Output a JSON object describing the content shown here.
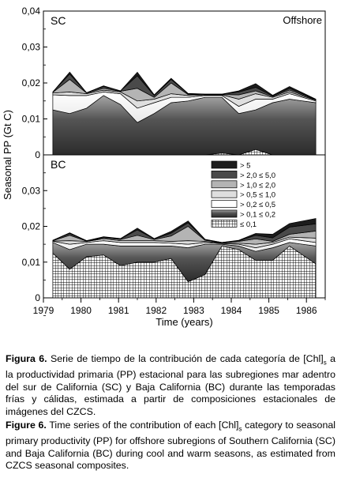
{
  "chart_data": {
    "type": "area",
    "stacked": true,
    "x": [
      1979.25,
      1979.7,
      1980.15,
      1980.6,
      1981.05,
      1981.5,
      1981.95,
      1982.4,
      1982.85,
      1983.3,
      1983.75,
      1984.2,
      1984.65,
      1985.1,
      1985.55,
      1986.25
    ],
    "xticks": [
      "1979",
      "1980",
      "1981",
      "1982",
      "1983",
      "1984",
      "1985",
      "1986"
    ],
    "xlabel": "Time (years)",
    "ylabel": "Seasonal PP (Gt C)",
    "yticks_top": [
      "0,04",
      "0,03",
      "0,02",
      "0,01",
      "0"
    ],
    "yticks_bottom": [
      "0,03",
      "0,02",
      "0,01",
      "0"
    ],
    "ylim": [
      0,
      0.04
    ],
    "legend": {
      "placement": "right, top of BC panel",
      "entries": [
        "> 5",
        "> 2,0 ≤ 5,0",
        "> 1,0 ≤ 2,0",
        "> 0,5 ≤ 1,0",
        "> 0,2 ≤ 0,5",
        "> 0,1 ≤ 0,2",
        "≤ 0,1"
      ]
    },
    "panels": [
      {
        "label": "SC",
        "annotation": "Offshore",
        "series": [
          {
            "name": "≤ 0,1",
            "values": [
              0,
              0,
              0,
              0,
              0,
              0,
              0,
              0,
              0,
              0,
              0.0005,
              0,
              0.0015,
              0,
              0,
              0
            ]
          },
          {
            "name": "> 0,1 ≤ 0,2",
            "values": [
              0.0125,
              0.0115,
              0.013,
              0.0165,
              0.014,
              0.009,
              0.0115,
              0.0145,
              0.015,
              0.016,
              0.0155,
              0.0115,
              0.011,
              0.0145,
              0.0155,
              0.0145
            ]
          },
          {
            "name": "> 0,2 ≤ 0,5",
            "values": [
              0.0042,
              0.005,
              0.0035,
              0.001,
              0.003,
              0.004,
              0.003,
              0.0015,
              0.001,
              0.0005,
              0.0005,
              0.002,
              0.003,
              0.001,
              0.0015,
              0.0005
            ]
          },
          {
            "name": "> 0,5 ≤ 1,0",
            "values": [
              0.0005,
              0.001,
              0.0005,
              0.0005,
              0.0005,
              0.002,
              0.001,
              0.001,
              0.0005,
              0.0002,
              0.0002,
              0.002,
              0.0015,
              0.0005,
              0.0005,
              0.0002
            ]
          },
          {
            "name": "> 1,0 ≤ 2,0",
            "values": [
              0.0002,
              0.0035,
              0.0002,
              0.0005,
              0.0002,
              0.0035,
              0.0005,
              0.003,
              0.0003,
              0.0001,
              0.0001,
              0.0012,
              0.0008,
              0.0002,
              0.0005,
              0.0001
            ]
          },
          {
            "name": "> 2,0 ≤ 5,0",
            "values": [
              0.0001,
              0.0015,
              0.0001,
              0.0005,
              0.0001,
              0.0035,
              0.0005,
              0.001,
              0.0002,
              0.0001,
              0.0001,
              0.0008,
              0.001,
              0.0002,
              0.0005,
              0.0001
            ]
          },
          {
            "name": "> 5",
            "values": [
              0,
              0.0005,
              0,
              0.0002,
              0,
              0.001,
              0.0002,
              0.0003,
              0.0001,
              0,
              0,
              0.0003,
              0.001,
              0.0002,
              0.0005,
              0.0001
            ]
          }
        ]
      },
      {
        "label": "BC",
        "series": [
          {
            "name": "≤ 0,1",
            "values": [
              0.0125,
              0.008,
              0.0115,
              0.012,
              0.009,
              0.01,
              0.01,
              0.011,
              0.0045,
              0.0065,
              0.0145,
              0.0135,
              0.0105,
              0.0105,
              0.0145,
              0.0095
            ]
          },
          {
            "name": "> 0,1 ≤ 0,2",
            "values": [
              0.003,
              0.0055,
              0.0035,
              0.003,
              0.0055,
              0.0045,
              0.0045,
              0.0035,
              0.0095,
              0.0085,
              0.0005,
              0.001,
              0.0025,
              0.0035,
              0.001,
              0.005
            ]
          },
          {
            "name": "> 0,2 ≤ 0,5",
            "values": [
              0.0003,
              0.0015,
              0.0005,
              0.001,
              0.001,
              0.001,
              0.001,
              0.0008,
              0.001,
              0.0005,
              0.0002,
              0.0005,
              0.001,
              0.001,
              0.001,
              0.001
            ]
          },
          {
            "name": "> 0,5 ≤ 1,0",
            "values": [
              0.0001,
              0.001,
              0.0003,
              0.0005,
              0.0005,
              0.0005,
              0.0005,
              0.0005,
              0.001,
              0.0003,
              0.0001,
              0.0003,
              0.001,
              0.0005,
              0.0005,
              0.0012
            ]
          },
          {
            "name": "> 1,0 ≤ 2,0",
            "values": [
              0.0001,
              0.0015,
              0.0001,
              0.0003,
              0.0003,
              0.0015,
              0.0003,
              0.0015,
              0.004,
              0.0003,
              0.0001,
              0.0005,
              0.0015,
              0.0003,
              0.0008,
              0.002
            ]
          },
          {
            "name": "> 2,0 ≤ 5,0",
            "values": [
              0.0001,
              0.0005,
              0.0001,
              0.0002,
              0.0002,
              0.0015,
              0.0002,
              0.0008,
              0.001,
              0.0002,
              0.0001,
              0.0002,
              0.001,
              0.001,
              0.002,
              0.002
            ]
          },
          {
            "name": "> 5",
            "values": [
              0,
              0.0002,
              0,
              0.0001,
              0.0001,
              0.0005,
              0.0001,
              0.0005,
              0.0005,
              0.0001,
              0,
              0.0001,
              0.0005,
              0.001,
              0.001,
              0.0015
            ]
          }
        ]
      }
    ]
  },
  "palette": {
    "> 5": "#1c1c1c",
    "> 2,0 ≤ 5,0": "#4a4a4a",
    "> 1,0 ≤ 2,0": "#b4b4b4",
    "> 0,5 ≤ 1,0": "#dedede",
    "> 0,2 ≤ 0,5": "#ffffff",
    "> 0,1 ≤ 0,2": "gradient-dark",
    "≤ 0,1": "grid-pattern"
  },
  "captions": {
    "es_label": "Figura 6.",
    "es_text": " Serie de tiempo de la contribución de cada categoría de [Chl]",
    "es_sub": "s",
    "es_text2": " a la productividad primaria (PP) estacional para las subregiones mar adentro del sur de California (SC) y Baja California (BC) durante las temporadas frías y cálidas, estimada a partir de composiciones estacionales de imágenes del CZCS.",
    "en_label": "Figure 6.",
    "en_text": " Time series of the contribution of each [Chl]",
    "en_sub": "s",
    "en_text2": " category to seasonal primary productivity (PP) for offshore subregions of Southern California (SC) and Baja California (BC) during cool and warm seasons, as estimated from CZCS seasonal composites."
  }
}
